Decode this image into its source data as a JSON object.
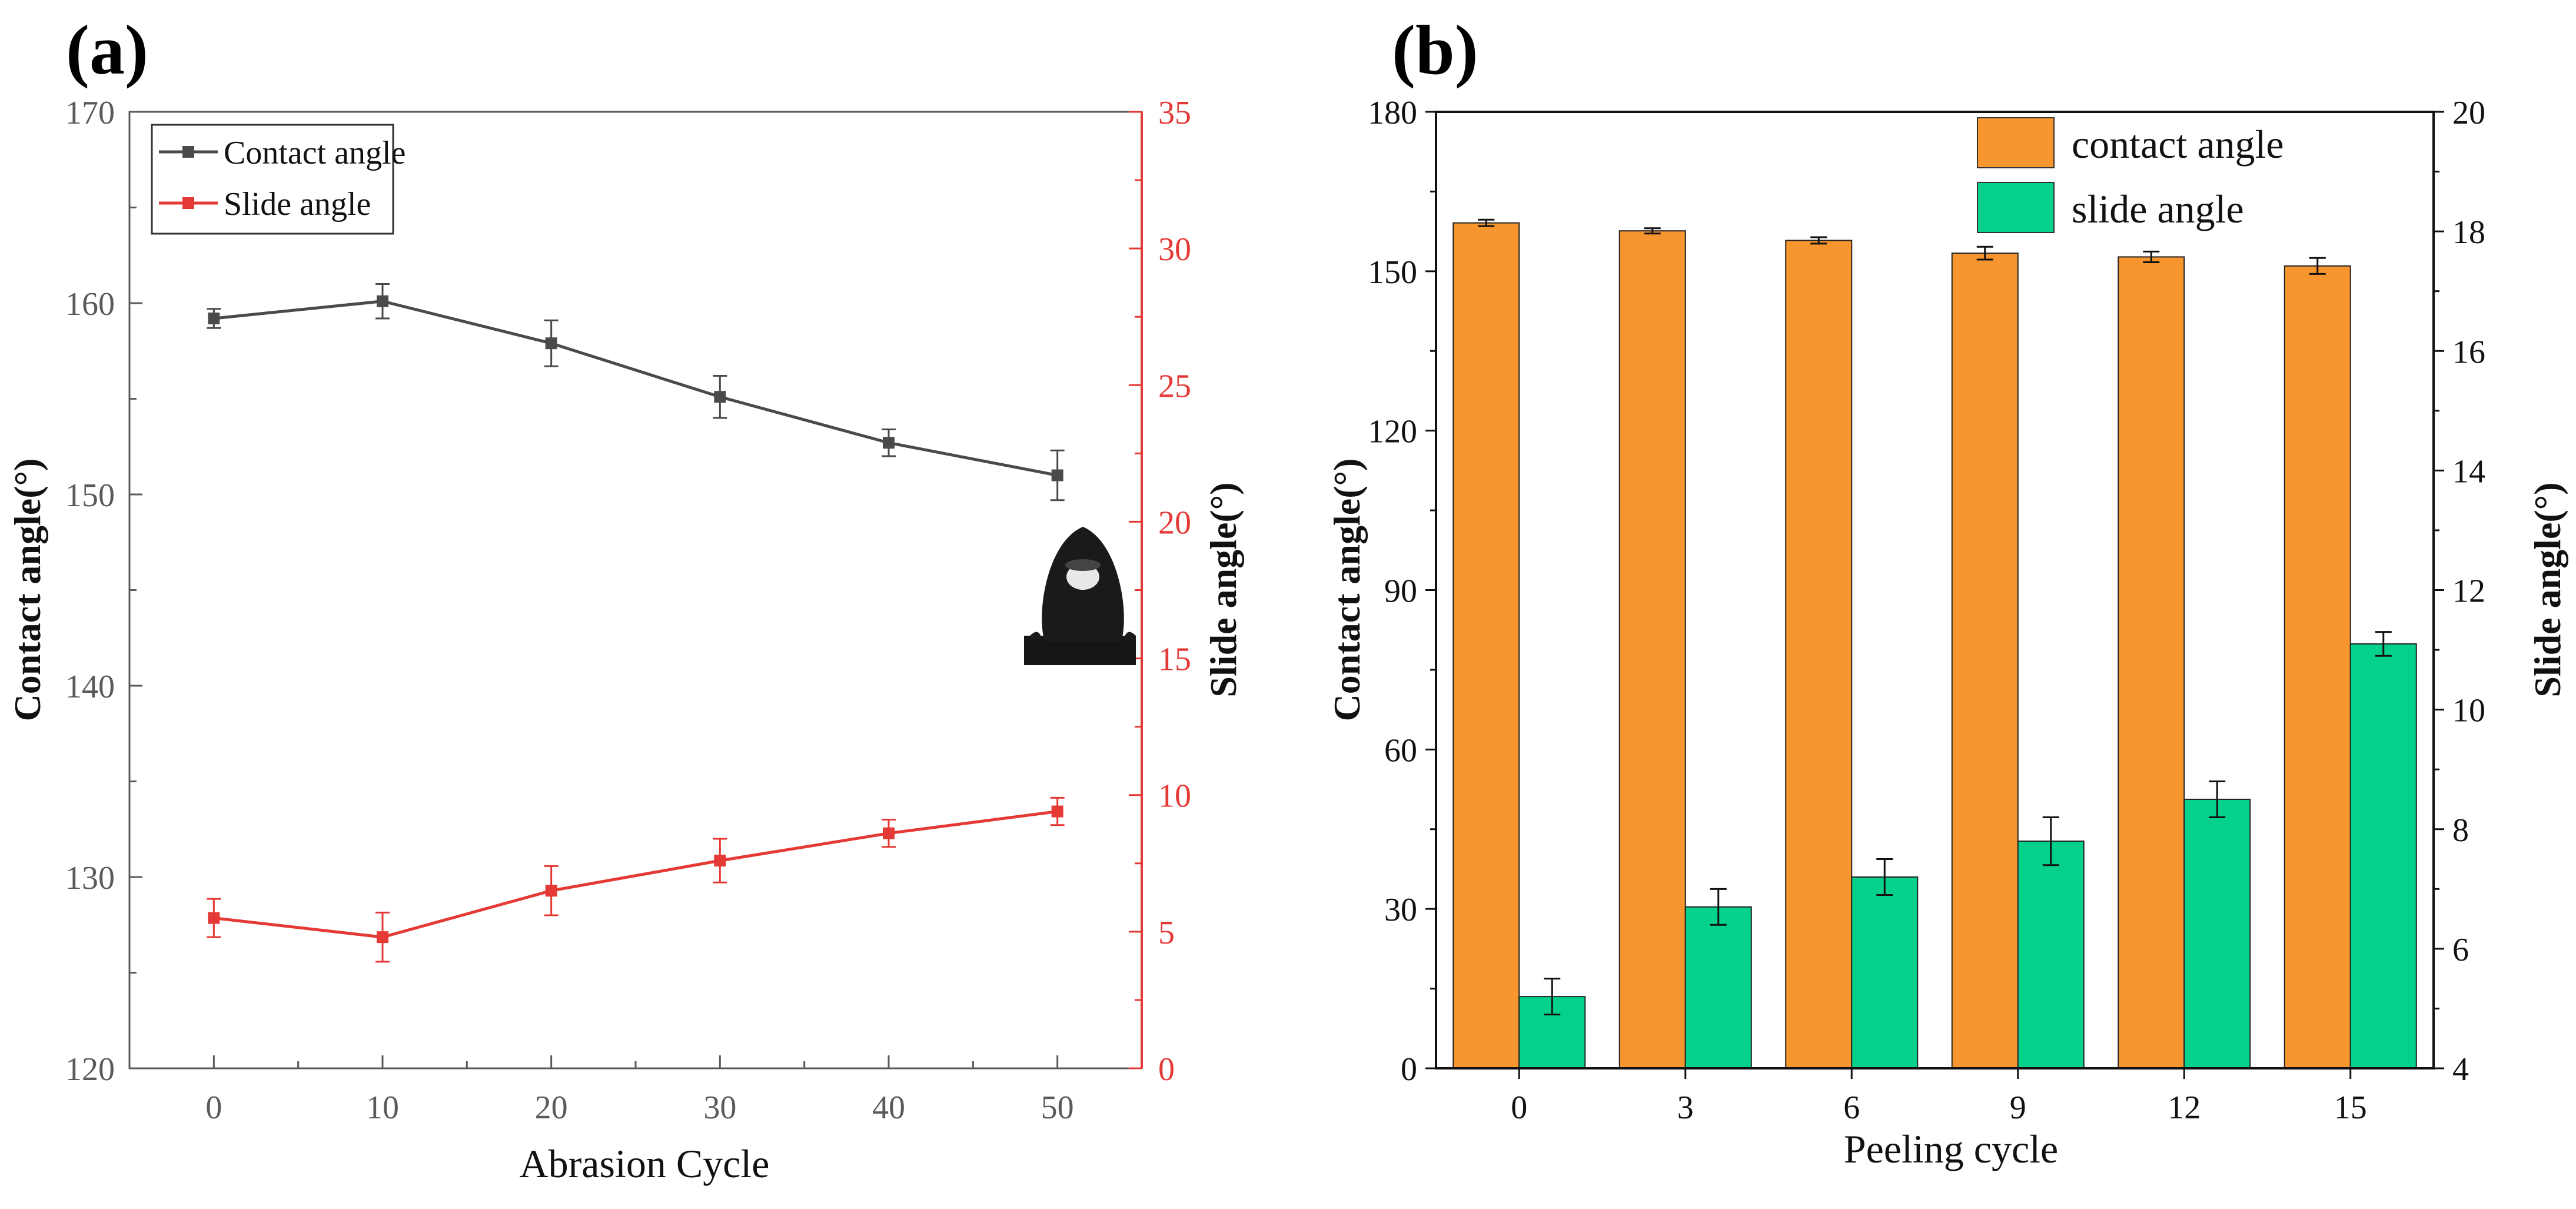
{
  "panel_labels": {
    "a": "(a)",
    "b": "(b)"
  },
  "colors": {
    "contact_line": "#4a4a4a",
    "slide_line": "#e53935",
    "bar_contact": "#f7952f",
    "bar_slide": "#05d28a",
    "axis": "#111111",
    "axis_gray": "#5a5a5a"
  },
  "chart_data": [
    {
      "type": "line",
      "title": "",
      "xlabel": "Abrasion Cycle",
      "ylabel": "Contact angle(°)",
      "y2label": "Slide angle(°)",
      "x": [
        0,
        10,
        20,
        30,
        40,
        50
      ],
      "xlim": [
        -5,
        55
      ],
      "ylim": [
        120,
        170
      ],
      "y2lim": [
        0,
        35
      ],
      "xticks": [
        "0",
        "10",
        "20",
        "30",
        "40",
        "50"
      ],
      "yticks": [
        "120",
        "130",
        "140",
        "150",
        "160",
        "170"
      ],
      "y2ticks": [
        "0",
        "5",
        "10",
        "15",
        "20",
        "25",
        "30",
        "35"
      ],
      "series": [
        {
          "name": "Contact angle",
          "axis": "left",
          "values": [
            159.2,
            160.1,
            157.9,
            155.1,
            152.7,
            151.0
          ],
          "errors": [
            0.5,
            0.9,
            1.2,
            1.1,
            0.7,
            1.3
          ]
        },
        {
          "name": "Slide angle",
          "axis": "right",
          "values": [
            5.5,
            4.8,
            6.5,
            7.6,
            8.6,
            9.4
          ],
          "errors": [
            0.7,
            0.9,
            0.9,
            0.8,
            0.5,
            0.5
          ]
        }
      ],
      "legend": "top-left",
      "inset": "water droplet photo"
    },
    {
      "type": "bar",
      "title": "",
      "xlabel": "Peeling cycle",
      "ylabel": "Contact angle(°)",
      "y2label": "Slide angle(°)",
      "categories": [
        "0",
        "3",
        "6",
        "9",
        "12",
        "15"
      ],
      "ylim": [
        0,
        180
      ],
      "y2lim": [
        4,
        20
      ],
      "yticks": [
        "0",
        "30",
        "60",
        "90",
        "120",
        "150",
        "180"
      ],
      "y2ticks": [
        "4",
        "6",
        "8",
        "10",
        "12",
        "14",
        "16",
        "18",
        "20"
      ],
      "series": [
        {
          "name": "contact angle",
          "axis": "left",
          "values": [
            159.1,
            157.6,
            155.8,
            153.4,
            152.7,
            151.0
          ],
          "errors": [
            0.6,
            0.5,
            0.6,
            1.2,
            1.0,
            1.5
          ]
        },
        {
          "name": "slide angle",
          "axis": "right",
          "values": [
            5.2,
            6.7,
            7.2,
            7.8,
            8.5,
            11.1
          ],
          "errors": [
            0.3,
            0.3,
            0.3,
            0.4,
            0.3,
            0.2
          ]
        }
      ],
      "legend": "top-center"
    }
  ]
}
